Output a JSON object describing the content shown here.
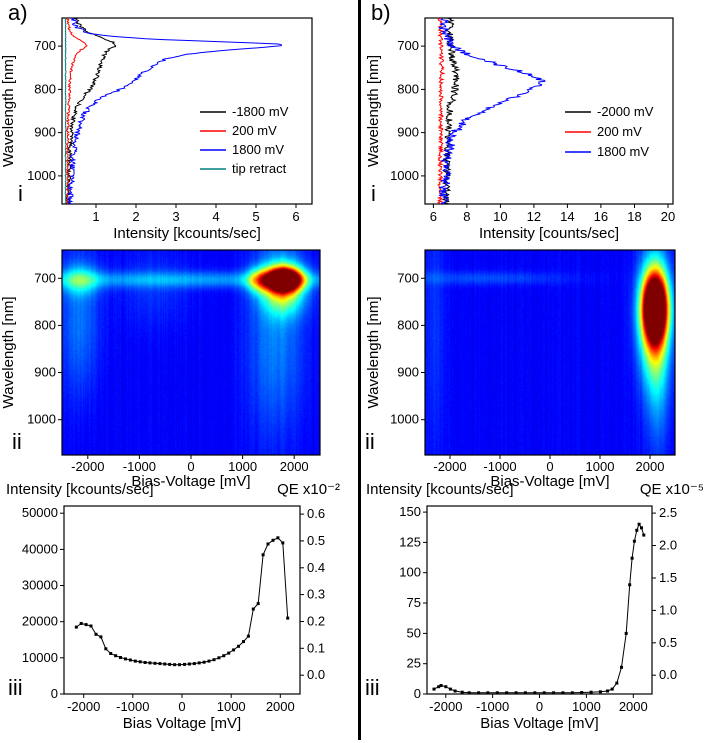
{
  "labels": {
    "a": "a)",
    "b": "b)",
    "i": "i",
    "ii": "ii",
    "iii": "iii"
  },
  "colors": {
    "black": "#000000",
    "red": "#ff0000",
    "blue": "#0000ff",
    "teal": "#008080",
    "divider": "#000000"
  },
  "chart_data": [
    {
      "id": "a_i",
      "type": "line",
      "xlabel": "Intensity [kcounts/sec]",
      "ylabel": "Wavelength [nm]",
      "xlim": [
        0.15,
        6.4
      ],
      "xticks": [
        1,
        2,
        3,
        4,
        5,
        6
      ],
      "ylim": [
        635,
        1065
      ],
      "yticks": [
        700,
        800,
        900,
        1000
      ],
      "legend_position": "inside-right",
      "series": [
        {
          "name": "-1800 mV",
          "color": "#000000",
          "noise": 0.05,
          "points": [
            [
              635,
              0.5
            ],
            [
              655,
              0.6
            ],
            [
              668,
              0.8
            ],
            [
              678,
              1.05
            ],
            [
              686,
              1.3
            ],
            [
              692,
              1.45
            ],
            [
              697,
              1.5
            ],
            [
              703,
              1.42
            ],
            [
              710,
              1.3
            ],
            [
              718,
              1.22
            ],
            [
              728,
              1.18
            ],
            [
              740,
              1.12
            ],
            [
              755,
              1.08
            ],
            [
              770,
              1.02
            ],
            [
              785,
              0.95
            ],
            [
              800,
              0.85
            ],
            [
              815,
              0.7
            ],
            [
              830,
              0.58
            ],
            [
              850,
              0.48
            ],
            [
              875,
              0.42
            ],
            [
              905,
              0.38
            ],
            [
              940,
              0.35
            ],
            [
              980,
              0.33
            ],
            [
              1065,
              0.3
            ]
          ]
        },
        {
          "name": "200 mV",
          "color": "#ff0000",
          "noise": 0.03,
          "points": [
            [
              635,
              0.28
            ],
            [
              660,
              0.33
            ],
            [
              675,
              0.42
            ],
            [
              685,
              0.58
            ],
            [
              692,
              0.72
            ],
            [
              698,
              0.78
            ],
            [
              705,
              0.68
            ],
            [
              715,
              0.55
            ],
            [
              728,
              0.46
            ],
            [
              745,
              0.4
            ],
            [
              770,
              0.36
            ],
            [
              810,
              0.33
            ],
            [
              870,
              0.3
            ],
            [
              950,
              0.29
            ],
            [
              1065,
              0.28
            ]
          ]
        },
        {
          "name": "1800 mV",
          "color": "#0000ff",
          "noise": 0.07,
          "points": [
            [
              635,
              0.4
            ],
            [
              655,
              0.5
            ],
            [
              668,
              0.75
            ],
            [
              676,
              1.2
            ],
            [
              684,
              2.4
            ],
            [
              690,
              4.2
            ],
            [
              695,
              5.5
            ],
            [
              698,
              5.65
            ],
            [
              702,
              5.35
            ],
            [
              707,
              4.6
            ],
            [
              713,
              3.8
            ],
            [
              720,
              3.2
            ],
            [
              728,
              2.8
            ],
            [
              738,
              2.55
            ],
            [
              750,
              2.35
            ],
            [
              762,
              2.15
            ],
            [
              775,
              2.0
            ],
            [
              788,
              1.85
            ],
            [
              800,
              1.6
            ],
            [
              812,
              1.3
            ],
            [
              825,
              1.05
            ],
            [
              840,
              0.85
            ],
            [
              858,
              0.7
            ],
            [
              880,
              0.6
            ],
            [
              905,
              0.52
            ],
            [
              935,
              0.46
            ],
            [
              970,
              0.42
            ],
            [
              1010,
              0.38
            ],
            [
              1065,
              0.35
            ]
          ]
        },
        {
          "name": "tip retract",
          "color": "#008080",
          "noise": 0.01,
          "points": [
            [
              635,
              0.24
            ],
            [
              1065,
              0.24
            ]
          ]
        }
      ]
    },
    {
      "id": "b_i",
      "type": "line",
      "xlabel": "Intensity [counts/sec]",
      "ylabel": "Wavelength [nm]",
      "xlim": [
        5.5,
        20.3
      ],
      "xticks": [
        6,
        8,
        10,
        12,
        14,
        16,
        18,
        20
      ],
      "ylim": [
        635,
        1065
      ],
      "yticks": [
        700,
        800,
        900,
        1000
      ],
      "legend_position": "inside-right",
      "series": [
        {
          "name": "-2000 mV",
          "color": "#000000",
          "noise": 0.22,
          "points": [
            [
              635,
              7.0
            ],
            [
              700,
              7.0
            ],
            [
              740,
              7.2
            ],
            [
              770,
              7.4
            ],
            [
              800,
              7.3
            ],
            [
              840,
              7.0
            ],
            [
              900,
              6.9
            ],
            [
              1000,
              6.8
            ],
            [
              1065,
              6.8
            ]
          ]
        },
        {
          "name": "200 mV",
          "color": "#ff0000",
          "noise": 0.13,
          "points": [
            [
              635,
              6.4
            ],
            [
              750,
              6.5
            ],
            [
              850,
              6.45
            ],
            [
              1065,
              6.4
            ]
          ]
        },
        {
          "name": "1800 mV",
          "color": "#0000ff",
          "noise": 0.32,
          "points": [
            [
              635,
              6.6
            ],
            [
              670,
              6.7
            ],
            [
              695,
              7.0
            ],
            [
              715,
              7.8
            ],
            [
              735,
              9.2
            ],
            [
              755,
              10.9
            ],
            [
              770,
              12.0
            ],
            [
              780,
              12.5
            ],
            [
              790,
              12.4
            ],
            [
              800,
              11.9
            ],
            [
              815,
              11.0
            ],
            [
              832,
              9.9
            ],
            [
              850,
              8.9
            ],
            [
              868,
              8.1
            ],
            [
              888,
              7.5
            ],
            [
              910,
              7.1
            ],
            [
              940,
              6.9
            ],
            [
              980,
              6.75
            ],
            [
              1030,
              6.65
            ],
            [
              1065,
              6.6
            ]
          ]
        }
      ]
    },
    {
      "id": "a_ii",
      "type": "heatmap",
      "xlabel": "Bias-Voltage [mV]",
      "ylabel": "Wavelength [nm]",
      "xlim": [
        -2500,
        2500
      ],
      "xticks": [
        -2000,
        -1000,
        0,
        1000,
        2000
      ],
      "ylim": [
        640,
        1075
      ],
      "yticks": [
        700,
        800,
        900,
        1000
      ],
      "colormap": "jet",
      "background_level": 0.12,
      "blobs": [
        {
          "x": 1800,
          "y": 703,
          "sx": 230,
          "sy": 16,
          "amp": 1.2
        },
        {
          "x": 1780,
          "y": 718,
          "sx": 280,
          "sy": 38,
          "amp": 0.5
        },
        {
          "x": 1300,
          "y": 705,
          "sx": 160,
          "sy": 18,
          "amp": 0.32
        },
        {
          "x": 0,
          "y": 703,
          "sx": 2600,
          "sy": 12,
          "amp": 0.16
        },
        {
          "x": -2150,
          "y": 705,
          "sx": 260,
          "sy": 22,
          "amp": 0.22
        },
        {
          "x": -2150,
          "y": 790,
          "sx": 260,
          "sy": 110,
          "amp": 0.12
        },
        {
          "x": 1650,
          "y": 830,
          "sx": 380,
          "sy": 140,
          "amp": 0.13
        },
        {
          "x": -700,
          "y": 720,
          "sx": 500,
          "sy": 60,
          "amp": 0.05
        }
      ]
    },
    {
      "id": "b_ii",
      "type": "heatmap",
      "xlabel": "Bias-Voltage [mV]",
      "ylabel": "Wavelength [nm]",
      "xlim": [
        -2500,
        2500
      ],
      "xticks": [
        -2000,
        -1000,
        0,
        1000,
        2000
      ],
      "ylim": [
        640,
        1075
      ],
      "yticks": [
        700,
        800,
        900,
        1000
      ],
      "colormap": "jet",
      "background_level": 0.12,
      "blobs": [
        {
          "x": 2100,
          "y": 762,
          "sx": 170,
          "sy": 48,
          "amp": 1.2
        },
        {
          "x": 2080,
          "y": 790,
          "sx": 200,
          "sy": 90,
          "amp": 0.5
        },
        {
          "x": 2150,
          "y": 890,
          "sx": 170,
          "sy": 130,
          "amp": 0.15
        },
        {
          "x": -1300,
          "y": 700,
          "sx": 1200,
          "sy": 10,
          "amp": 0.08
        },
        {
          "x": -2300,
          "y": 800,
          "sx": 130,
          "sy": 220,
          "amp": 0.06
        }
      ]
    },
    {
      "id": "a_iii",
      "type": "scatter-line",
      "title_left": "Intensity  [kcounts/sec]",
      "title_right": "QE x10⁻²",
      "xlabel": "Bias Voltage [mV]",
      "xlim": [
        -2400,
        2400
      ],
      "xticks": [
        -2000,
        -1000,
        0,
        1000,
        2000
      ],
      "ylim": [
        0,
        52000
      ],
      "yticks": [
        0,
        10000,
        20000,
        30000,
        40000,
        50000
      ],
      "y2lim": [
        -0.07,
        0.63
      ],
      "y2ticks": [
        0,
        0.1,
        0.2,
        0.3,
        0.4,
        0.5,
        0.6
      ],
      "marker_color": "#000000",
      "points": [
        [
          -2150,
          18500
        ],
        [
          -2050,
          19500
        ],
        [
          -1950,
          19200
        ],
        [
          -1850,
          18800
        ],
        [
          -1750,
          16500
        ],
        [
          -1650,
          15800
        ],
        [
          -1550,
          12500
        ],
        [
          -1450,
          11200
        ],
        [
          -1350,
          10600
        ],
        [
          -1250,
          10100
        ],
        [
          -1150,
          9700
        ],
        [
          -1050,
          9400
        ],
        [
          -950,
          9100
        ],
        [
          -850,
          8900
        ],
        [
          -750,
          8700
        ],
        [
          -650,
          8600
        ],
        [
          -550,
          8500
        ],
        [
          -450,
          8400
        ],
        [
          -350,
          8300
        ],
        [
          -250,
          8200
        ],
        [
          -150,
          8100
        ],
        [
          -50,
          8100
        ],
        [
          50,
          8200
        ],
        [
          150,
          8300
        ],
        [
          250,
          8400
        ],
        [
          350,
          8600
        ],
        [
          450,
          8800
        ],
        [
          550,
          9100
        ],
        [
          650,
          9500
        ],
        [
          750,
          10000
        ],
        [
          850,
          10600
        ],
        [
          950,
          11300
        ],
        [
          1050,
          12200
        ],
        [
          1150,
          13200
        ],
        [
          1250,
          14500
        ],
        [
          1350,
          16000
        ],
        [
          1450,
          23500
        ],
        [
          1550,
          25000
        ],
        [
          1650,
          38500
        ],
        [
          1750,
          41500
        ],
        [
          1850,
          42500
        ],
        [
          1950,
          43200
        ],
        [
          2050,
          41800
        ],
        [
          2150,
          21000
        ]
      ]
    },
    {
      "id": "b_iii",
      "type": "scatter-line",
      "title_left": "Intensity  [kcounts/sec]",
      "title_right": "QE x10⁻⁵",
      "xlabel": "Bias Voltage [mV]",
      "xlim": [
        -2400,
        2400
      ],
      "xticks": [
        -2000,
        -1000,
        0,
        1000,
        2000
      ],
      "ylim": [
        0,
        155
      ],
      "yticks": [
        0,
        25,
        50,
        75,
        100,
        125,
        150
      ],
      "y2lim": [
        -0.29,
        2.61
      ],
      "y2ticks": [
        0,
        0.5,
        1,
        1.5,
        2,
        2.5
      ],
      "marker_color": "#000000",
      "points": [
        [
          -2250,
          4
        ],
        [
          -2150,
          6
        ],
        [
          -2100,
          7
        ],
        [
          -2000,
          6
        ],
        [
          -1900,
          4
        ],
        [
          -1800,
          2.5
        ],
        [
          -1650,
          1.5
        ],
        [
          -1500,
          1
        ],
        [
          -1300,
          1
        ],
        [
          -1100,
          1
        ],
        [
          -900,
          1
        ],
        [
          -700,
          1
        ],
        [
          -500,
          1
        ],
        [
          -300,
          1
        ],
        [
          -100,
          1
        ],
        [
          100,
          1
        ],
        [
          300,
          1
        ],
        [
          500,
          1
        ],
        [
          700,
          1
        ],
        [
          900,
          1.2
        ],
        [
          1100,
          1.5
        ],
        [
          1300,
          1.8
        ],
        [
          1450,
          2.5
        ],
        [
          1550,
          4
        ],
        [
          1650,
          9
        ],
        [
          1750,
          22
        ],
        [
          1850,
          50
        ],
        [
          1925,
          90
        ],
        [
          1975,
          112
        ],
        [
          2025,
          126
        ],
        [
          2075,
          135
        ],
        [
          2125,
          140
        ],
        [
          2175,
          137
        ],
        [
          2225,
          131
        ]
      ]
    }
  ]
}
